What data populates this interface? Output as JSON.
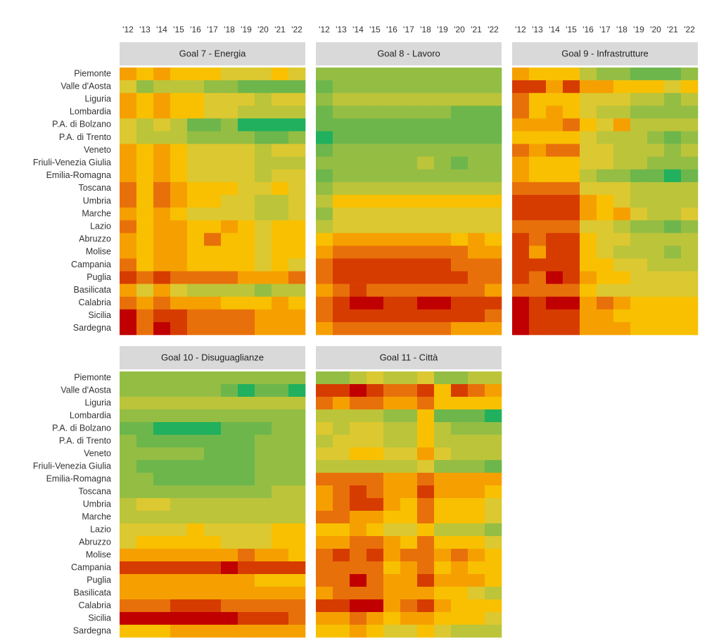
{
  "color_scale": [
    "#c00000",
    "#d63c00",
    "#e8700a",
    "#f5a000",
    "#f8c000",
    "#dcc830",
    "#bcc43a",
    "#94bd44",
    "#6db64c",
    "#20b05e"
  ],
  "zlim": [
    0,
    9
  ],
  "chart_data": [
    {
      "type": "heatmap",
      "title": "Goal 7 - Energia",
      "x_categories": [
        "'12",
        "'13",
        "'14",
        "'15",
        "'16",
        "'17",
        "'18",
        "'19",
        "'20",
        "'21",
        "'22"
      ],
      "y_categories": [
        "Piemonte",
        "Valle d'Aosta",
        "Liguria",
        "Lombardia",
        "P.A. di Bolzano",
        "P.A. di Trento",
        "Veneto",
        "Friuli-Venezia Giulia",
        "Emilia-Romagna",
        "Toscana",
        "Umbria",
        "Marche",
        "Lazio",
        "Abruzzo",
        "Molise",
        "Campania",
        "Puglia",
        "Basilicata",
        "Calabria",
        "Sicilia",
        "Sardegna"
      ],
      "values": [
        [
          3,
          4,
          3,
          4,
          4,
          4,
          5,
          5,
          5,
          4,
          5
        ],
        [
          5,
          7,
          6,
          6,
          6,
          7,
          7,
          8,
          8,
          8,
          8
        ],
        [
          3,
          4,
          3,
          4,
          4,
          5,
          5,
          5,
          6,
          5,
          5
        ],
        [
          3,
          4,
          3,
          4,
          4,
          5,
          5,
          6,
          6,
          6,
          6
        ],
        [
          5,
          6,
          5,
          6,
          8,
          8,
          7,
          9,
          9,
          9,
          9
        ],
        [
          5,
          6,
          6,
          6,
          7,
          7,
          7,
          7,
          8,
          8,
          7
        ],
        [
          3,
          4,
          3,
          4,
          5,
          5,
          5,
          5,
          6,
          5,
          5
        ],
        [
          3,
          4,
          3,
          4,
          5,
          5,
          5,
          5,
          6,
          6,
          6
        ],
        [
          3,
          4,
          3,
          4,
          5,
          5,
          5,
          5,
          6,
          5,
          5
        ],
        [
          2,
          4,
          2,
          3,
          4,
          4,
          4,
          5,
          5,
          4,
          5
        ],
        [
          2,
          4,
          2,
          3,
          4,
          4,
          5,
          5,
          6,
          6,
          5
        ],
        [
          3,
          4,
          3,
          4,
          5,
          5,
          5,
          5,
          6,
          6,
          5
        ],
        [
          2,
          4,
          3,
          3,
          4,
          4,
          3,
          4,
          5,
          4,
          4
        ],
        [
          3,
          4,
          3,
          3,
          4,
          2,
          4,
          4,
          5,
          4,
          4
        ],
        [
          3,
          4,
          3,
          3,
          4,
          4,
          4,
          4,
          5,
          4,
          4
        ],
        [
          2,
          4,
          3,
          3,
          4,
          4,
          4,
          4,
          5,
          4,
          5
        ],
        [
          1,
          2,
          1,
          2,
          2,
          2,
          2,
          3,
          3,
          3,
          2
        ],
        [
          3,
          5,
          3,
          5,
          6,
          6,
          6,
          6,
          7,
          6,
          6
        ],
        [
          2,
          3,
          2,
          3,
          3,
          3,
          4,
          4,
          4,
          3,
          4
        ],
        [
          0,
          2,
          1,
          1,
          2,
          2,
          2,
          2,
          3,
          3,
          3
        ],
        [
          0,
          2,
          0,
          1,
          2,
          2,
          2,
          2,
          3,
          3,
          3
        ]
      ]
    },
    {
      "type": "heatmap",
      "title": "Goal 8 - Lavoro",
      "x_categories": [
        "'12",
        "'13",
        "'14",
        "'15",
        "'16",
        "'17",
        "'18",
        "'19",
        "'20",
        "'21",
        "'22"
      ],
      "values": [
        [
          7,
          7,
          7,
          7,
          7,
          7,
          7,
          7,
          7,
          7,
          7
        ],
        [
          8,
          7,
          7,
          7,
          7,
          7,
          7,
          7,
          7,
          7,
          7
        ],
        [
          7,
          6,
          6,
          6,
          6,
          6,
          6,
          6,
          6,
          6,
          6
        ],
        [
          8,
          7,
          7,
          7,
          7,
          7,
          7,
          7,
          8,
          8,
          8
        ],
        [
          8,
          8,
          8,
          8,
          8,
          8,
          8,
          8,
          8,
          8,
          8
        ],
        [
          9,
          8,
          8,
          8,
          8,
          8,
          8,
          8,
          8,
          8,
          8
        ],
        [
          8,
          7,
          7,
          7,
          7,
          7,
          7,
          7,
          7,
          7,
          7
        ],
        [
          7,
          7,
          7,
          7,
          7,
          7,
          6,
          7,
          8,
          7,
          7
        ],
        [
          8,
          7,
          7,
          7,
          7,
          7,
          7,
          7,
          7,
          7,
          7
        ],
        [
          7,
          6,
          6,
          6,
          6,
          6,
          6,
          6,
          6,
          6,
          6
        ],
        [
          6,
          4,
          4,
          4,
          4,
          4,
          4,
          4,
          4,
          4,
          4
        ],
        [
          7,
          5,
          5,
          5,
          5,
          5,
          5,
          5,
          5,
          5,
          5
        ],
        [
          6,
          5,
          5,
          5,
          5,
          5,
          5,
          5,
          5,
          5,
          5
        ],
        [
          4,
          3,
          3,
          3,
          3,
          3,
          3,
          3,
          4,
          3,
          4
        ],
        [
          3,
          2,
          2,
          2,
          2,
          2,
          2,
          2,
          2,
          3,
          3
        ],
        [
          2,
          1,
          1,
          1,
          1,
          1,
          1,
          1,
          2,
          2,
          2
        ],
        [
          2,
          1,
          1,
          1,
          1,
          1,
          1,
          1,
          1,
          2,
          2
        ],
        [
          3,
          2,
          1,
          2,
          2,
          2,
          2,
          2,
          2,
          2,
          3
        ],
        [
          2,
          1,
          0,
          0,
          1,
          1,
          0,
          0,
          1,
          1,
          1
        ],
        [
          2,
          1,
          1,
          1,
          1,
          1,
          1,
          1,
          1,
          1,
          2
        ],
        [
          3,
          2,
          2,
          2,
          2,
          2,
          2,
          2,
          3,
          3,
          3
        ]
      ]
    },
    {
      "type": "heatmap",
      "title": "Goal 9 - Infrastrutture",
      "x_categories": [
        "'12",
        "'13",
        "'14",
        "'15",
        "'16",
        "'17",
        "'18",
        "'19",
        "'20",
        "'21",
        "'22"
      ],
      "values": [
        [
          3,
          4,
          4,
          4,
          6,
          7,
          7,
          8,
          8,
          8,
          7
        ],
        [
          1,
          1,
          3,
          1,
          3,
          3,
          4,
          4,
          4,
          5,
          4
        ],
        [
          2,
          4,
          4,
          4,
          5,
          5,
          5,
          6,
          6,
          7,
          6
        ],
        [
          2,
          4,
          3,
          4,
          5,
          6,
          6,
          7,
          7,
          7,
          7
        ],
        [
          3,
          3,
          3,
          2,
          4,
          5,
          3,
          6,
          6,
          6,
          6
        ],
        [
          4,
          4,
          4,
          4,
          5,
          6,
          6,
          6,
          7,
          8,
          7
        ],
        [
          2,
          3,
          2,
          2,
          5,
          5,
          6,
          6,
          6,
          7,
          6
        ],
        [
          3,
          4,
          4,
          4,
          5,
          5,
          6,
          6,
          7,
          7,
          7
        ],
        [
          3,
          4,
          4,
          4,
          6,
          7,
          7,
          8,
          8,
          9,
          8
        ],
        [
          2,
          2,
          2,
          2,
          5,
          5,
          5,
          6,
          6,
          6,
          6
        ],
        [
          1,
          1,
          1,
          1,
          3,
          4,
          5,
          6,
          6,
          6,
          6
        ],
        [
          1,
          1,
          1,
          1,
          3,
          4,
          3,
          5,
          6,
          6,
          5
        ],
        [
          2,
          2,
          2,
          2,
          5,
          5,
          6,
          7,
          7,
          8,
          7
        ],
        [
          1,
          2,
          1,
          1,
          4,
          5,
          5,
          6,
          6,
          6,
          6
        ],
        [
          1,
          3,
          1,
          1,
          4,
          5,
          6,
          6,
          6,
          7,
          6
        ],
        [
          1,
          1,
          1,
          1,
          4,
          4,
          5,
          5,
          6,
          6,
          6
        ],
        [
          1,
          2,
          0,
          1,
          3,
          4,
          4,
          5,
          5,
          5,
          5
        ],
        [
          2,
          2,
          2,
          2,
          4,
          5,
          5,
          5,
          5,
          5,
          5
        ],
        [
          0,
          1,
          0,
          0,
          3,
          2,
          3,
          4,
          4,
          4,
          4
        ],
        [
          0,
          1,
          1,
          1,
          3,
          3,
          4,
          4,
          4,
          4,
          4
        ],
        [
          0,
          1,
          1,
          1,
          3,
          3,
          3,
          4,
          4,
          4,
          4
        ]
      ]
    },
    {
      "type": "heatmap",
      "title": "Goal 10 - Disuguaglianze",
      "y_categories": [
        "Piemonte",
        "Valle d'Aosta",
        "Liguria",
        "Lombardia",
        "P.A. di Bolzano",
        "P.A. di Trento",
        "Veneto",
        "Friuli-Venezia Giulia",
        "Emilia-Romagna",
        "Toscana",
        "Umbria",
        "Marche",
        "Lazio",
        "Abruzzo",
        "Molise",
        "Campania",
        "Puglia",
        "Basilicata",
        "Calabria",
        "Sicilia",
        "Sardegna"
      ],
      "values": [
        [
          7,
          7,
          7,
          7,
          7,
          7,
          7,
          7,
          7,
          7,
          7
        ],
        [
          7,
          7,
          7,
          7,
          7,
          7,
          8,
          9,
          8,
          8,
          9
        ],
        [
          6,
          6,
          6,
          6,
          6,
          6,
          6,
          6,
          6,
          6,
          6
        ],
        [
          7,
          7,
          7,
          7,
          7,
          7,
          7,
          7,
          7,
          7,
          7
        ],
        [
          8,
          8,
          9,
          9,
          9,
          9,
          8,
          8,
          8,
          7,
          7
        ],
        [
          7,
          8,
          8,
          8,
          8,
          8,
          8,
          8,
          7,
          7,
          7
        ],
        [
          7,
          7,
          7,
          7,
          7,
          8,
          8,
          8,
          7,
          7,
          7
        ],
        [
          7,
          8,
          8,
          8,
          8,
          8,
          8,
          8,
          7,
          7,
          7
        ],
        [
          7,
          7,
          8,
          8,
          8,
          8,
          8,
          8,
          7,
          7,
          7
        ],
        [
          7,
          7,
          7,
          7,
          7,
          7,
          7,
          7,
          7,
          6,
          6
        ],
        [
          6,
          5,
          5,
          6,
          6,
          6,
          6,
          6,
          6,
          6,
          6
        ],
        [
          6,
          6,
          6,
          6,
          6,
          6,
          6,
          6,
          6,
          6,
          6
        ],
        [
          5,
          5,
          5,
          5,
          4,
          5,
          5,
          5,
          5,
          4,
          4
        ],
        [
          5,
          4,
          4,
          4,
          4,
          4,
          5,
          5,
          5,
          4,
          4
        ],
        [
          3,
          3,
          3,
          3,
          3,
          3,
          3,
          2,
          3,
          3,
          4
        ],
        [
          1,
          1,
          1,
          1,
          1,
          1,
          0,
          1,
          1,
          1,
          1
        ],
        [
          3,
          3,
          3,
          3,
          3,
          3,
          3,
          3,
          4,
          4,
          4
        ],
        [
          3,
          3,
          3,
          3,
          3,
          3,
          3,
          3,
          3,
          3,
          3
        ],
        [
          2,
          2,
          2,
          1,
          1,
          1,
          2,
          2,
          2,
          2,
          2
        ],
        [
          0,
          0,
          0,
          0,
          0,
          0,
          0,
          1,
          1,
          1,
          2
        ],
        [
          4,
          4,
          4,
          3,
          3,
          3,
          3,
          3,
          3,
          3,
          3
        ]
      ]
    },
    {
      "type": "heatmap",
      "title": "Goal 11 - Città",
      "values": [
        [
          7,
          7,
          6,
          5,
          6,
          6,
          5,
          7,
          7,
          6,
          6
        ],
        [
          1,
          1,
          0,
          1,
          2,
          2,
          1,
          4,
          1,
          2,
          3
        ],
        [
          2,
          3,
          2,
          2,
          3,
          3,
          2,
          4,
          4,
          4,
          4
        ],
        [
          6,
          6,
          6,
          6,
          7,
          7,
          4,
          8,
          8,
          8,
          9
        ],
        [
          5,
          6,
          5,
          5,
          6,
          6,
          4,
          6,
          7,
          7,
          7
        ],
        [
          6,
          5,
          5,
          5,
          6,
          6,
          4,
          6,
          6,
          6,
          6
        ],
        [
          5,
          5,
          4,
          4,
          5,
          5,
          3,
          5,
          6,
          6,
          6
        ],
        [
          6,
          6,
          6,
          6,
          6,
          6,
          5,
          7,
          7,
          7,
          8
        ],
        [
          2,
          2,
          2,
          2,
          3,
          3,
          2,
          3,
          3,
          3,
          3
        ],
        [
          3,
          2,
          1,
          2,
          3,
          3,
          1,
          3,
          3,
          3,
          4
        ],
        [
          3,
          2,
          1,
          1,
          3,
          4,
          2,
          4,
          4,
          4,
          5
        ],
        [
          2,
          2,
          3,
          3,
          4,
          4,
          2,
          4,
          4,
          4,
          5
        ],
        [
          4,
          4,
          3,
          4,
          5,
          5,
          4,
          6,
          6,
          6,
          7
        ],
        [
          3,
          3,
          2,
          2,
          3,
          4,
          2,
          4,
          4,
          4,
          5
        ],
        [
          2,
          1,
          2,
          1,
          3,
          2,
          2,
          3,
          2,
          3,
          4
        ],
        [
          2,
          2,
          2,
          2,
          4,
          3,
          2,
          4,
          3,
          4,
          4
        ],
        [
          2,
          2,
          0,
          2,
          3,
          3,
          1,
          3,
          3,
          3,
          4
        ],
        [
          3,
          2,
          2,
          2,
          3,
          3,
          3,
          4,
          4,
          5,
          6
        ],
        [
          1,
          1,
          0,
          0,
          3,
          2,
          1,
          3,
          4,
          4,
          4
        ],
        [
          3,
          3,
          2,
          3,
          4,
          3,
          3,
          4,
          4,
          4,
          5
        ],
        [
          4,
          4,
          3,
          4,
          5,
          5,
          4,
          5,
          6,
          6,
          6
        ]
      ]
    }
  ]
}
